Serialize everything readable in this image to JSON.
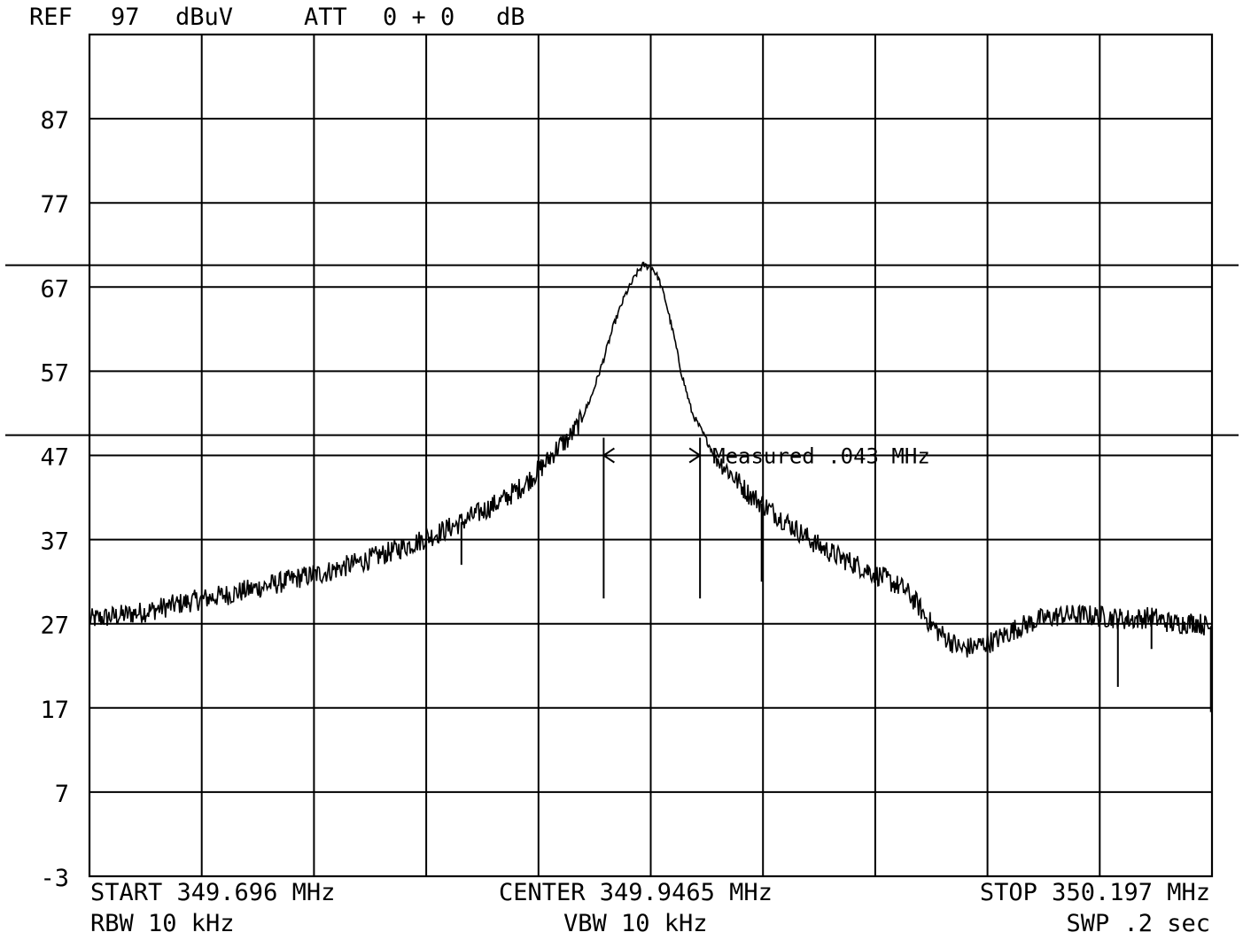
{
  "header": {
    "ref_label": "REF",
    "ref_value": "97",
    "ref_unit": "dBuV",
    "att_label": "ATT",
    "att_value": "0 + 0",
    "att_unit": "dB"
  },
  "footer": {
    "start": "START 349.696 MHz",
    "center": "CENTER 349.9465 MHz",
    "stop": "STOP 350.197 MHz",
    "rbw": "RBW  10 kHz",
    "vbw": "VBW  10 kHz",
    "swp": "SWP  .2 sec"
  },
  "chart_data": {
    "type": "line",
    "title": "",
    "xlabel": "",
    "ylabel": "",
    "x_unit": "MHz",
    "y_unit": "dBuV",
    "xlim": [
      349.696,
      350.197
    ],
    "ylim": [
      -3,
      97
    ],
    "y_ticks": [
      "87",
      "77",
      "67",
      "57",
      "47",
      "37",
      "27",
      "17",
      "7",
      "-3"
    ],
    "y_tick_values": [
      87,
      77,
      67,
      57,
      47,
      37,
      27,
      17,
      7,
      -3
    ],
    "x_divisions": 10,
    "y_divisions": 10,
    "grid": true,
    "reference_lines": [
      69.6,
      49.4
    ],
    "measurement": {
      "label": "Measured .043 MHz",
      "x_start": 349.9255,
      "x_end": 349.9685,
      "level": 47.0,
      "marker_bottom": 30
    },
    "series": [
      {
        "x": [
          349.696,
          349.71,
          349.72,
          349.73,
          349.74,
          349.75,
          349.76,
          349.77,
          349.78,
          349.79,
          349.8,
          349.81,
          349.82,
          349.83,
          349.84,
          349.85,
          349.86,
          349.87,
          349.88,
          349.89,
          349.9,
          349.905,
          349.91,
          349.915,
          349.92,
          349.925,
          349.93,
          349.935,
          349.94,
          349.943,
          349.946,
          349.9465,
          349.95,
          349.953,
          349.957,
          349.96,
          349.965,
          349.97,
          349.975,
          349.98,
          349.985,
          349.99,
          350.0,
          350.01,
          350.02,
          350.03,
          350.04,
          350.05,
          350.055,
          350.06,
          350.065,
          350.07,
          350.075,
          350.08,
          350.085,
          350.09,
          350.1,
          350.11,
          350.12,
          350.13,
          350.14,
          350.15,
          350.16,
          350.17,
          350.18,
          350.19,
          350.197
        ],
        "y": [
          27.5,
          28.0,
          28.4,
          29.0,
          29.6,
          30.1,
          30.6,
          31.2,
          31.8,
          32.5,
          33.0,
          33.8,
          34.6,
          35.5,
          36.5,
          37.6,
          38.8,
          40.2,
          41.6,
          43.5,
          46.2,
          48.0,
          49.0,
          51.0,
          54.0,
          58.0,
          62.5,
          66.0,
          68.5,
          69.6,
          69.4,
          69.6,
          68.0,
          65.5,
          61.0,
          57.0,
          52.0,
          49.5,
          47.0,
          45.5,
          44.0,
          42.5,
          40.5,
          38.5,
          36.5,
          35.0,
          33.8,
          32.5,
          31.8,
          31.0,
          29.5,
          27.5,
          26.0,
          25.0,
          24.0,
          24.2,
          25.0,
          26.5,
          27.5,
          28.0,
          28.0,
          27.8,
          27.5,
          27.8,
          27.0,
          27.2,
          26.5
        ],
        "spikes": [
          {
            "x": 349.862,
            "to": 34.0
          },
          {
            "x": 349.996,
            "to": 32.0
          },
          {
            "x": 350.155,
            "to": 19.5
          },
          {
            "x": 350.17,
            "to": 24.0
          },
          {
            "x": 350.199,
            "to": 16.5
          }
        ]
      }
    ]
  }
}
